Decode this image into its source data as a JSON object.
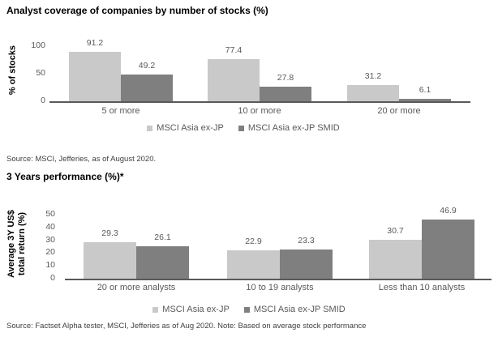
{
  "page": {
    "source_top": "Source: MSCI, Jefferies, as of August 2020.",
    "source_bottom": "Source: Factset Alpha tester, MSCI, Jefferies as of Aug 2020. Note: Based on average stock performance"
  },
  "colors": {
    "series_light": "#c9c9c9",
    "series_dark": "#7f7f7f",
    "chart_text": "#595959",
    "axis_line": "#595959",
    "title_text": "#000000",
    "source_text": "#3f3f3f"
  },
  "chart_data": [
    {
      "type": "bar",
      "title": "Analyst coverage of companies by number of stocks (%)",
      "ylabel": [
        "% of stocks"
      ],
      "categories": [
        "5 or more",
        "10 or more",
        "20 or more"
      ],
      "series": [
        {
          "name": "MSCI Asia ex-JP",
          "color": "#c9c9c9",
          "values": [
            91.2,
            77.4,
            31.2
          ]
        },
        {
          "name": "MSCI Asia ex-JP SMID",
          "color": "#7f7f7f",
          "values": [
            49.2,
            27.8,
            6.1
          ]
        }
      ],
      "yticks": [
        0,
        50,
        100
      ],
      "ylim": [
        0,
        100
      ],
      "grid": false,
      "data_labels": true,
      "legend_position": "bottom"
    },
    {
      "type": "bar",
      "title": "3 Years performance (%)*",
      "ylabel": [
        "Average 3Y US$",
        "total return (%)"
      ],
      "categories": [
        "20 or more analysts",
        "10 to 19 analysts",
        "Less than 10 analysts"
      ],
      "series": [
        {
          "name": "MSCI Asia ex-JP",
          "color": "#c9c9c9",
          "values": [
            29.3,
            22.9,
            30.7
          ]
        },
        {
          "name": "MSCI Asia ex-JP SMID",
          "color": "#7f7f7f",
          "values": [
            26.1,
            23.3,
            46.9
          ]
        }
      ],
      "yticks": [
        0,
        10,
        20,
        30,
        40,
        50
      ],
      "ylim": [
        0,
        50
      ],
      "grid": false,
      "data_labels": true,
      "legend_position": "bottom"
    }
  ]
}
